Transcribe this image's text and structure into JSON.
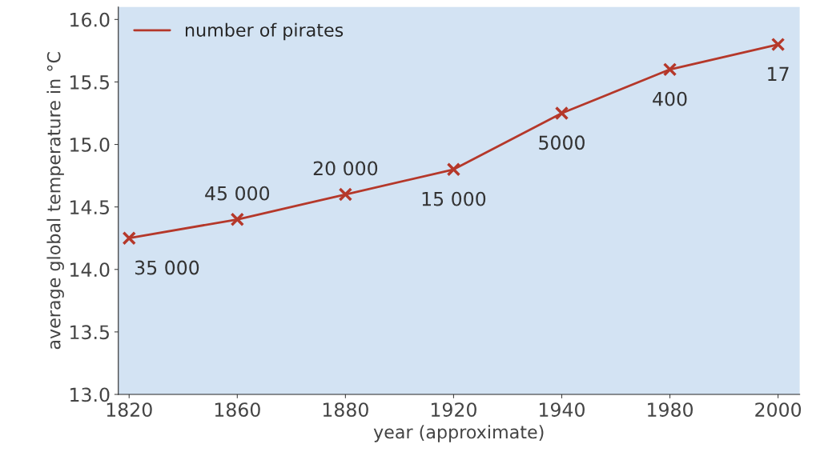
{
  "chart_data": {
    "type": "line",
    "categories": [
      "1820",
      "1860",
      "1880",
      "1920",
      "1940",
      "1980",
      "2000"
    ],
    "series": [
      {
        "name": "number of pirates",
        "color": "#b5382a",
        "values": [
          14.25,
          14.4,
          14.6,
          14.8,
          15.25,
          15.6,
          15.8
        ]
      }
    ],
    "xlabel": "year (approximate)",
    "ylabel": "average global temperature in °C",
    "ylim": [
      13.0,
      16.1
    ],
    "yticks": [
      {
        "value": 13,
        "label": "13.0"
      },
      13.5,
      {
        "value": 14,
        "label": "14.0"
      },
      14.5,
      {
        "value": 15,
        "label": "15.0"
      },
      15.5,
      {
        "value": 16,
        "label": "16.0"
      }
    ],
    "marker": "cross",
    "legend": "top left",
    "grid": false,
    "annotations": [
      {
        "text": "35 000",
        "x": "1820",
        "y": 14.25
      },
      {
        "text": "45 000",
        "x": "1860",
        "y": 14.4
      },
      {
        "text": "20 000",
        "x": "1880",
        "y": 14.6
      },
      {
        "text": "15 000",
        "x": "1920",
        "y": 14.8
      },
      {
        "text": "5000",
        "x": "1940",
        "y": 15.25
      },
      {
        "text": "400",
        "x": "1980",
        "y": 15.6
      },
      {
        "text": "17",
        "x": "2000",
        "y": 15.8
      }
    ]
  }
}
